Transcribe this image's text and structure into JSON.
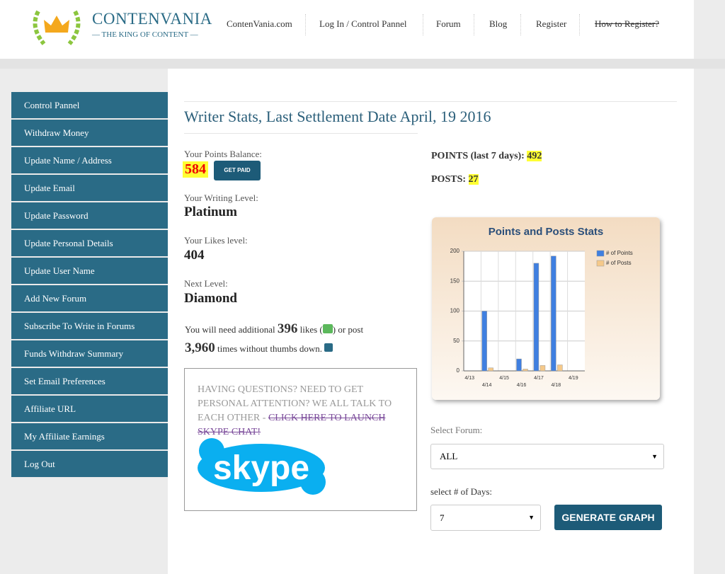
{
  "header": {
    "logo_title": "CONTENVANIA",
    "logo_tagline": "— THE KING OF CONTENT —",
    "nav": [
      "ContenVania.com",
      "Log In / Control Pannel",
      "Forum",
      "Blog",
      "Register",
      "How to Register?"
    ]
  },
  "sidebar": {
    "items": [
      "Control Pannel",
      "Withdraw Money",
      "Update Name / Address",
      "Update Email",
      "Update Password",
      "Update Personal Details",
      "Update User Name",
      "Add New Forum",
      "Subscribe To Write in Forums",
      "Funds Withdraw Summary",
      "Set Email Preferences",
      "Affiliate URL",
      "My Affiliate Earnings",
      "Log Out"
    ]
  },
  "main": {
    "title": "Writer Stats, Last Settlement Date April, 19 2016",
    "points_balance_label": "Your Points Balance:",
    "points_balance": 584,
    "get_paid": "GET PAID",
    "writing_level_label": "Your Writing Level:",
    "writing_level": "Platinum",
    "likes_level_label": "Your Likes level:",
    "likes_level": 404,
    "next_level_label": "Next Level:",
    "next_level": "Diamond",
    "need_1": "You will need additional",
    "need_likes": 396,
    "need_2": "likes (",
    "need_3": ") or post",
    "need_posts": "3,960",
    "need_4": "times without thumbs down.",
    "points_label": "POINTS (last 7 days):",
    "points": 492,
    "posts_label": "POSTS:",
    "posts": 27
  },
  "help": {
    "text": "HAVING QUESTIONS? NEED TO GET PERSONAL ATTENTION? WE ALL TALK TO EACH OTHER - ",
    "link": "CLICK HERE TO LAUNCH SKYPE CHAT!",
    "logo": "skype"
  },
  "form": {
    "forum_label": "Select Forum:",
    "forum_value": "ALL",
    "days_label": "select # of Days:",
    "days_value": 7,
    "button": "GENERATE GRAPH"
  },
  "chart_data": {
    "type": "bar",
    "title": "Points and Posts Stats",
    "categories": [
      "4/13",
      "4/14",
      "4/15",
      "4/16",
      "4/17",
      "4/18",
      "4/19"
    ],
    "series": [
      {
        "name": "# of Points",
        "color": "#3f7fe0",
        "values": [
          null,
          100,
          null,
          20,
          180,
          192,
          null
        ]
      },
      {
        "name": "# of Posts",
        "color": "#f5c98a",
        "values": [
          null,
          5,
          null,
          3,
          9,
          10,
          null
        ]
      }
    ],
    "ylim": [
      0,
      200
    ],
    "yticks": [
      0,
      50,
      100,
      150,
      200
    ],
    "grid": true,
    "legend": "top-right"
  }
}
